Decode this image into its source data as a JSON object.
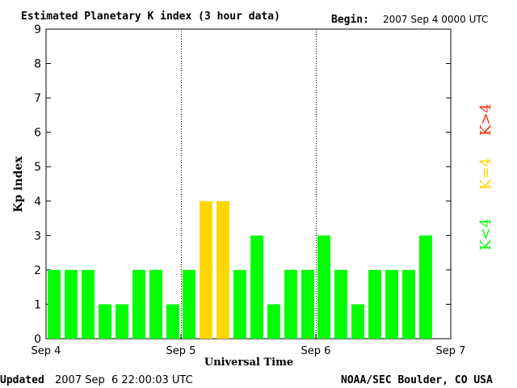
{
  "header": {
    "title": "Estimated Planetary K index (3 hour data)",
    "begin_label": "Begin:",
    "begin_value": "2007 Sep 4 0000 UTC"
  },
  "footer": {
    "updated_label": "Updated",
    "updated_value": "2007 Sep  6 22:00:03 UTC",
    "source": "NOAA/SEC Boulder, CO USA"
  },
  "legend": {
    "low": "K<4",
    "mid": "K=4",
    "high": "K>4"
  },
  "chart_data": {
    "type": "bar",
    "xlabel": "Universal Time",
    "ylabel": "Kp index",
    "ylim": [
      0,
      9
    ],
    "yticks": [
      "0",
      "1",
      "2",
      "3",
      "4",
      "5",
      "6",
      "7",
      "8",
      "9"
    ],
    "xtick_labels": [
      "Sep 4",
      "Sep 5",
      "Sep 6",
      "Sep 7"
    ],
    "intervals_per_day": 8,
    "days": 3,
    "values": [
      2,
      2,
      2,
      1,
      1,
      2,
      2,
      1,
      2,
      4,
      4,
      2,
      3,
      1,
      2,
      2,
      3,
      2,
      1,
      2,
      2,
      2,
      3
    ],
    "day_separators": "dotted vertical lines at day boundaries",
    "colors": {
      "below_4": "#00ff00",
      "equal_4": "#ffd700",
      "above_4": "#ff2a00",
      "axis": "#000000"
    }
  }
}
